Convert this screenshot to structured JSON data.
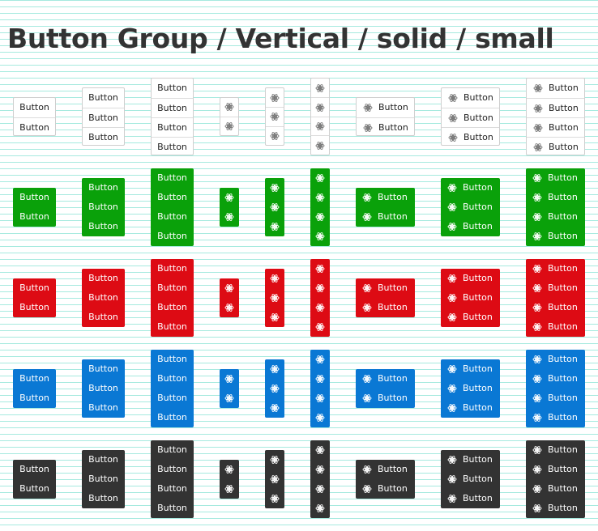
{
  "page": {
    "title": "Button Group / Vertical / solid / small"
  },
  "button_label": "Button",
  "icon": "atom-icon",
  "columns": [
    {
      "kind": "text",
      "count": 2
    },
    {
      "kind": "text",
      "count": 3
    },
    {
      "kind": "text",
      "count": 4
    },
    {
      "kind": "icon",
      "count": 2
    },
    {
      "kind": "icon",
      "count": 3
    },
    {
      "kind": "icon",
      "count": 4
    },
    {
      "kind": "icon-text",
      "count": 2
    },
    {
      "kind": "icon-text",
      "count": 3
    },
    {
      "kind": "icon-text",
      "count": 4
    }
  ],
  "variants": [
    {
      "name": "outline",
      "color": "#ffffff"
    },
    {
      "name": "green",
      "color": "#0aa10a"
    },
    {
      "name": "red",
      "color": "#dd0b14"
    },
    {
      "name": "blue",
      "color": "#0a78d4"
    },
    {
      "name": "dark",
      "color": "#333333"
    }
  ]
}
